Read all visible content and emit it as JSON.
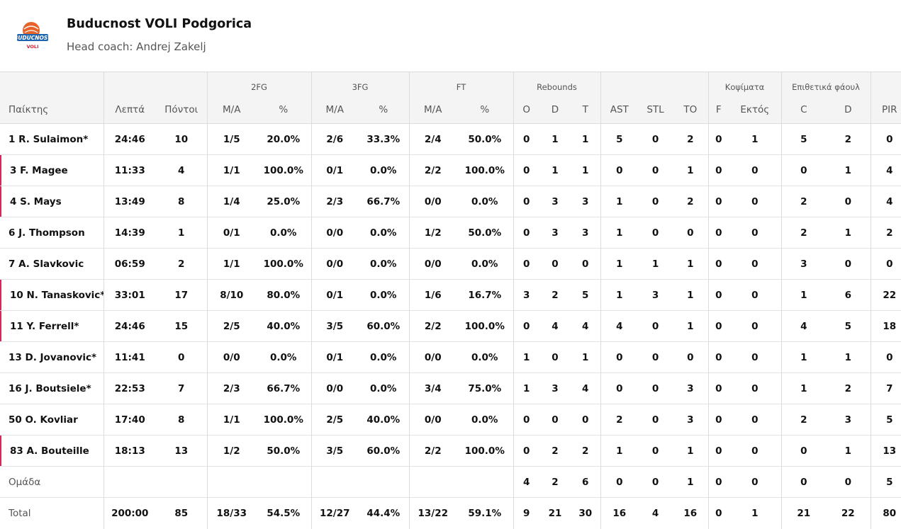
{
  "team": {
    "name": "Buducnost VOLI Podgorica",
    "coach": "Head coach: Andrej Zakelj",
    "logo_text": "BUDUCNOST",
    "logo_sub": "VOLI",
    "logo_colors": {
      "ball": "#e8632a",
      "text": "#1c64b0",
      "sub": "#e0182d"
    }
  },
  "marker_color": "#d8265a",
  "group_headers": {
    "fg2": "2FG",
    "fg3": "3FG",
    "ft": "FT",
    "rebounds": "Rebounds",
    "blocks": "Κοψίματα",
    "fouls": "Επιθετικά φάουλ"
  },
  "columns": [
    "Παίκτης",
    "Λεπτά",
    "Πόντοι",
    "M/A",
    "%",
    "M/A",
    "%",
    "M/A",
    "%",
    "O",
    "D",
    "T",
    "AST",
    "STL",
    "TO",
    "F",
    "Εκτός",
    "C",
    "D",
    "PIR"
  ],
  "rows": [
    {
      "marked": false,
      "cells": [
        "1 R. Sulaimon*",
        "24:46",
        "10",
        "1/5",
        "20.0%",
        "2/6",
        "33.3%",
        "2/4",
        "50.0%",
        "0",
        "1",
        "1",
        "5",
        "0",
        "2",
        "0",
        "1",
        "5",
        "2",
        "0"
      ]
    },
    {
      "marked": true,
      "cells": [
        "3 F. Magee",
        "11:33",
        "4",
        "1/1",
        "100.0%",
        "0/1",
        "0.0%",
        "2/2",
        "100.0%",
        "0",
        "1",
        "1",
        "0",
        "0",
        "1",
        "0",
        "0",
        "0",
        "1",
        "4"
      ]
    },
    {
      "marked": true,
      "cells": [
        "4 S. Mays",
        "13:49",
        "8",
        "1/4",
        "25.0%",
        "2/3",
        "66.7%",
        "0/0",
        "0.0%",
        "0",
        "3",
        "3",
        "1",
        "0",
        "2",
        "0",
        "0",
        "2",
        "0",
        "4"
      ]
    },
    {
      "marked": false,
      "cells": [
        "6 J. Thompson",
        "14:39",
        "1",
        "0/1",
        "0.0%",
        "0/0",
        "0.0%",
        "1/2",
        "50.0%",
        "0",
        "3",
        "3",
        "1",
        "0",
        "0",
        "0",
        "0",
        "2",
        "1",
        "2"
      ]
    },
    {
      "marked": false,
      "cells": [
        "7 A. Slavkovic",
        "06:59",
        "2",
        "1/1",
        "100.0%",
        "0/0",
        "0.0%",
        "0/0",
        "0.0%",
        "0",
        "0",
        "0",
        "1",
        "1",
        "1",
        "0",
        "0",
        "3",
        "0",
        "0"
      ]
    },
    {
      "marked": true,
      "cells": [
        "10 N. Tanaskovic*",
        "33:01",
        "17",
        "8/10",
        "80.0%",
        "0/1",
        "0.0%",
        "1/6",
        "16.7%",
        "3",
        "2",
        "5",
        "1",
        "3",
        "1",
        "0",
        "0",
        "1",
        "6",
        "22"
      ]
    },
    {
      "marked": true,
      "cells": [
        "11 Y. Ferrell*",
        "24:46",
        "15",
        "2/5",
        "40.0%",
        "3/5",
        "60.0%",
        "2/2",
        "100.0%",
        "0",
        "4",
        "4",
        "4",
        "0",
        "1",
        "0",
        "0",
        "4",
        "5",
        "18"
      ]
    },
    {
      "marked": false,
      "cells": [
        "13 D. Jovanovic*",
        "11:41",
        "0",
        "0/0",
        "0.0%",
        "0/1",
        "0.0%",
        "0/0",
        "0.0%",
        "1",
        "0",
        "1",
        "0",
        "0",
        "0",
        "0",
        "0",
        "1",
        "1",
        "0"
      ]
    },
    {
      "marked": false,
      "cells": [
        "16 J. Boutsiele*",
        "22:53",
        "7",
        "2/3",
        "66.7%",
        "0/0",
        "0.0%",
        "3/4",
        "75.0%",
        "1",
        "3",
        "4",
        "0",
        "0",
        "3",
        "0",
        "0",
        "1",
        "2",
        "7"
      ]
    },
    {
      "marked": false,
      "cells": [
        "50 O. Kovliar",
        "17:40",
        "8",
        "1/1",
        "100.0%",
        "2/5",
        "40.0%",
        "0/0",
        "0.0%",
        "0",
        "0",
        "0",
        "2",
        "0",
        "3",
        "0",
        "0",
        "2",
        "3",
        "5"
      ]
    },
    {
      "marked": true,
      "cells": [
        "83 A. Bouteille",
        "18:13",
        "13",
        "1/2",
        "50.0%",
        "3/5",
        "60.0%",
        "2/2",
        "100.0%",
        "0",
        "2",
        "2",
        "1",
        "0",
        "1",
        "0",
        "0",
        "0",
        "1",
        "13"
      ]
    }
  ],
  "team_row": [
    "Ομάδα",
    "",
    "",
    "",
    "",
    "",
    "",
    "",
    "",
    "4",
    "2",
    "6",
    "0",
    "0",
    "1",
    "0",
    "0",
    "0",
    "0",
    "5"
  ],
  "total_row": [
    "Total",
    "200:00",
    "85",
    "18/33",
    "54.5%",
    "12/27",
    "44.4%",
    "13/22",
    "59.1%",
    "9",
    "21",
    "30",
    "16",
    "4",
    "16",
    "0",
    "1",
    "21",
    "22",
    "80"
  ]
}
